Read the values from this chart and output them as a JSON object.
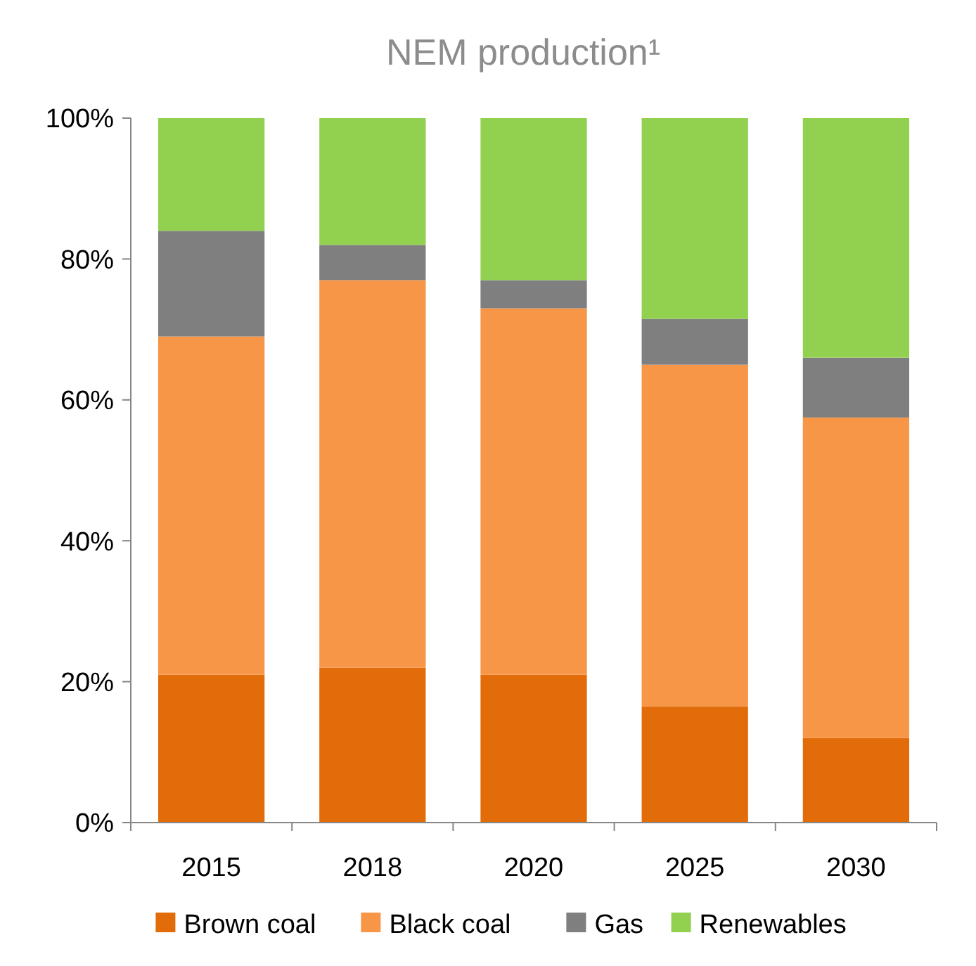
{
  "chart_data": {
    "type": "bar",
    "title": "NEM production¹",
    "categories": [
      "2015",
      "2018",
      "2020",
      "2025",
      "2030"
    ],
    "stacked": true,
    "series": [
      {
        "name": "Brown coal",
        "color": "#e36c0a",
        "values": [
          21,
          22,
          21,
          16.5,
          12
        ]
      },
      {
        "name": "Black coal",
        "color": "#f79646",
        "values": [
          48,
          55,
          52,
          48.5,
          45.5
        ]
      },
      {
        "name": "Gas",
        "color": "#7f7f7f",
        "values": [
          15,
          5,
          4,
          6.5,
          8.5
        ]
      },
      {
        "name": "Renewables",
        "color": "#92d050",
        "values": [
          16,
          18,
          23,
          28.5,
          34
        ]
      }
    ],
    "ylim": [
      0,
      100
    ],
    "yticks": [
      {
        "value": 0,
        "label": "0%"
      },
      {
        "value": 20,
        "label": "20%"
      },
      {
        "value": 40,
        "label": "40%"
      },
      {
        "value": 60,
        "label": "60%"
      },
      {
        "value": 80,
        "label": "80%"
      },
      {
        "value": 100,
        "label": "100%"
      }
    ],
    "legend": "bottom"
  }
}
